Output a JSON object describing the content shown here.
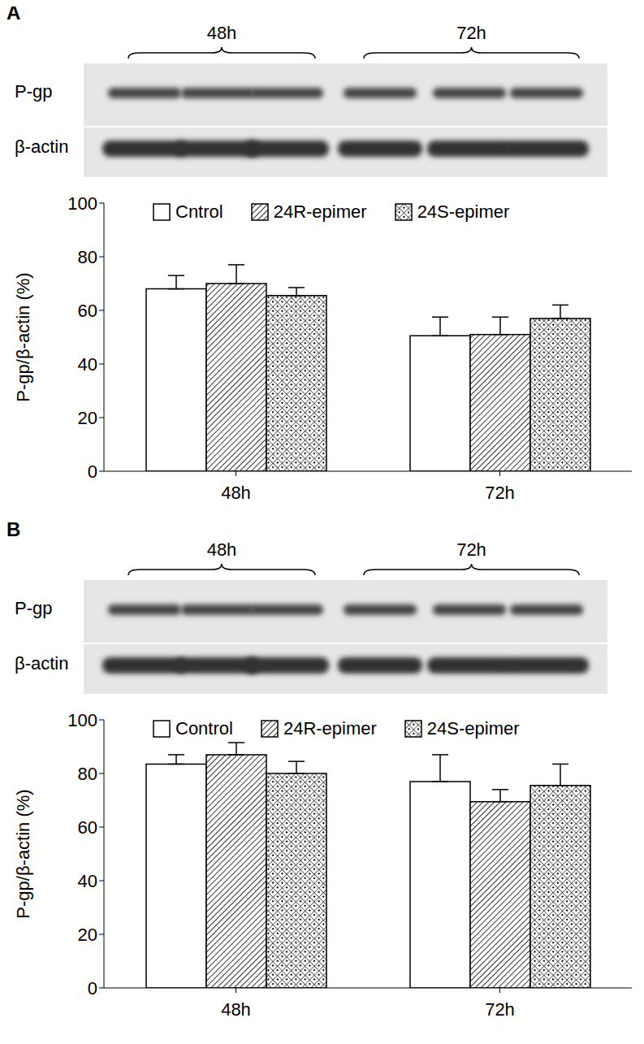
{
  "chart_data": [
    {
      "type": "bar",
      "title": "A",
      "blot": {
        "rows": [
          "P-gp",
          "β-actin"
        ],
        "groups": [
          "48h",
          "72h"
        ]
      },
      "categories": [
        "48h",
        "72h"
      ],
      "y_label": "P-gp/β-actin (%)",
      "ylim": [
        0,
        100
      ],
      "yticks": [
        0,
        20,
        40,
        60,
        80,
        100
      ],
      "grid": false,
      "legend": "top",
      "series": [
        {
          "name": "Cntrol",
          "color": "#000000",
          "values": [
            68,
            50.5
          ],
          "errors": [
            5,
            7
          ]
        },
        {
          "name": "24R-epimer",
          "color": "#000000",
          "values": [
            70,
            51
          ],
          "errors": [
            7,
            6.5
          ]
        },
        {
          "name": "24S-epimer",
          "color": "#000000",
          "values": [
            65.5,
            57
          ],
          "errors": [
            3,
            5
          ]
        }
      ]
    },
    {
      "type": "bar",
      "title": "B",
      "blot": {
        "rows": [
          "P-gp",
          "β-actin"
        ],
        "groups": [
          "48h",
          "72h"
        ]
      },
      "categories": [
        "48h",
        "72h"
      ],
      "y_label": "P-gp/β-actin (%)",
      "ylim": [
        0,
        100
      ],
      "yticks": [
        0,
        20,
        40,
        60,
        80,
        100
      ],
      "grid": false,
      "legend": "top",
      "series": [
        {
          "name": "Control",
          "color": "#000000",
          "values": [
            83.5,
            77
          ],
          "errors": [
            3.5,
            10
          ]
        },
        {
          "name": "24R-epimer",
          "color": "#000000",
          "values": [
            87,
            69.5
          ],
          "errors": [
            4.5,
            4.5
          ]
        },
        {
          "name": "24S-epimer",
          "color": "#000000",
          "values": [
            80,
            75.5
          ],
          "errors": [
            4.5,
            8
          ]
        }
      ]
    }
  ]
}
